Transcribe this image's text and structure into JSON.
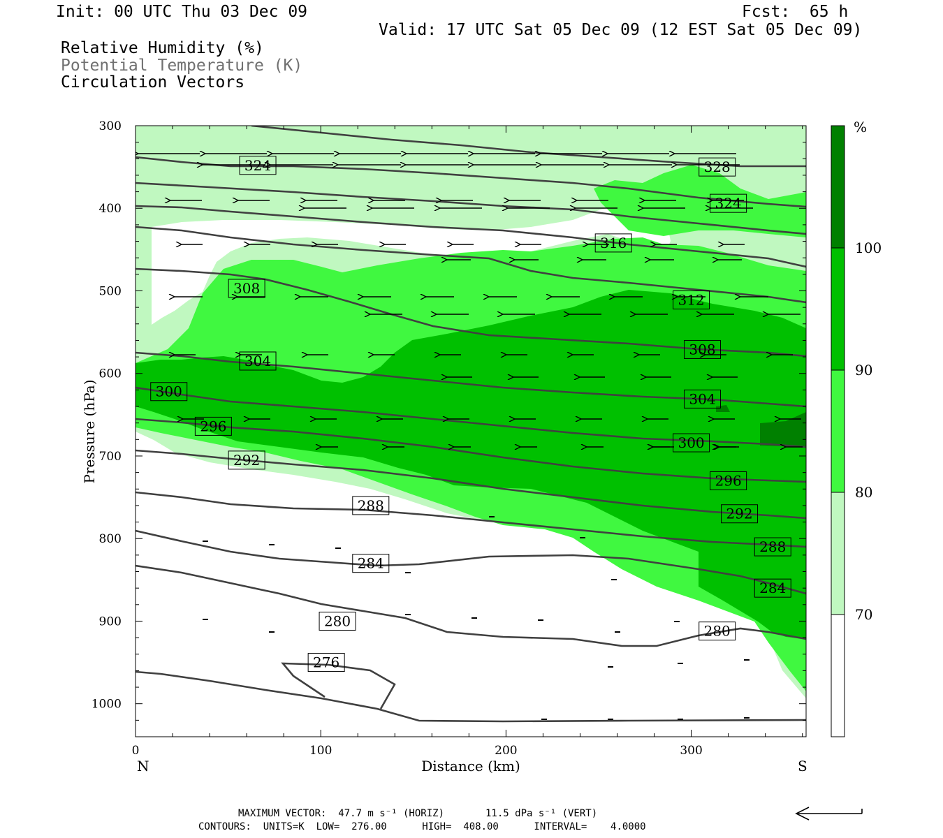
{
  "header": {
    "init": "Init: 00 UTC Thu 03 Dec 09",
    "fcst": "Fcst:  65 h",
    "valid": "Valid: 17 UTC Sat 05 Dec 09 (12 EST Sat 05 Dec 09)",
    "field1": "Relative Humidity (%)",
    "field2": "Potential Temperature (K)",
    "field3": "Circulation Vectors"
  },
  "footer": {
    "max_vector": "MAXIMUM VECTOR:  47.7 m s⁻¹ (HORIZ)       11.5 dPa s⁻¹ (VERT)",
    "contours": "CONTOURS:  UNITS=K  LOW=  276.00      HIGH=  408.00      INTERVAL=    4.0000"
  },
  "colors": {
    "rh70": "#c0f8c0",
    "rh80": "#40f840",
    "rh90": "#00c000",
    "rh100": "#008000",
    "theta": "#404040"
  },
  "chart_data": {
    "type": "cross-section",
    "xlabel": "Distance (km)",
    "ylabel": "Pressure (hPa)",
    "xlim": [
      0,
      362
    ],
    "ylim": [
      1040,
      300
    ],
    "x_ticks": [
      "0",
      "100",
      "200",
      "300"
    ],
    "y_ticks": [
      "300",
      "400",
      "500",
      "600",
      "700",
      "800",
      "900",
      "1000"
    ],
    "x_end_labels": {
      "left": "N",
      "right": "S"
    },
    "colorbar": {
      "unit": "%",
      "levels": [
        "70",
        "80",
        "90",
        "100"
      ]
    },
    "theta_contours": [
      {
        "label": "276",
        "label_at": [
          103,
          950
        ]
      },
      {
        "label": "280",
        "label_at": [
          109,
          900
        ]
      },
      {
        "label": "280",
        "label_at": [
          314,
          912
        ]
      },
      {
        "label": "284",
        "label_at": [
          127,
          830
        ]
      },
      {
        "label": "284",
        "label_at": [
          344,
          860
        ]
      },
      {
        "label": "288",
        "label_at": [
          127,
          760
        ]
      },
      {
        "label": "288",
        "label_at": [
          344,
          810
        ]
      },
      {
        "label": "292",
        "label_at": [
          60,
          705
        ]
      },
      {
        "label": "292",
        "label_at": [
          326,
          770
        ]
      },
      {
        "label": "296",
        "label_at": [
          42,
          664
        ]
      },
      {
        "label": "296",
        "label_at": [
          320,
          730
        ]
      },
      {
        "label": "300",
        "label_at": [
          18,
          622
        ]
      },
      {
        "label": "300",
        "label_at": [
          300,
          684
        ]
      },
      {
        "label": "304",
        "label_at": [
          66,
          585
        ]
      },
      {
        "label": "304",
        "label_at": [
          306,
          631
        ]
      },
      {
        "label": "308",
        "label_at": [
          60,
          497
        ]
      },
      {
        "label": "308",
        "label_at": [
          306,
          571
        ]
      },
      {
        "label": "312",
        "label_at": [
          300,
          511
        ]
      },
      {
        "label": "316",
        "label_at": [
          258,
          442
        ]
      },
      {
        "label": "324",
        "label_at": [
          66,
          348
        ]
      },
      {
        "label": "324",
        "label_at": [
          320,
          394
        ]
      },
      {
        "label": "328",
        "label_at": [
          314,
          350
        ]
      }
    ]
  }
}
